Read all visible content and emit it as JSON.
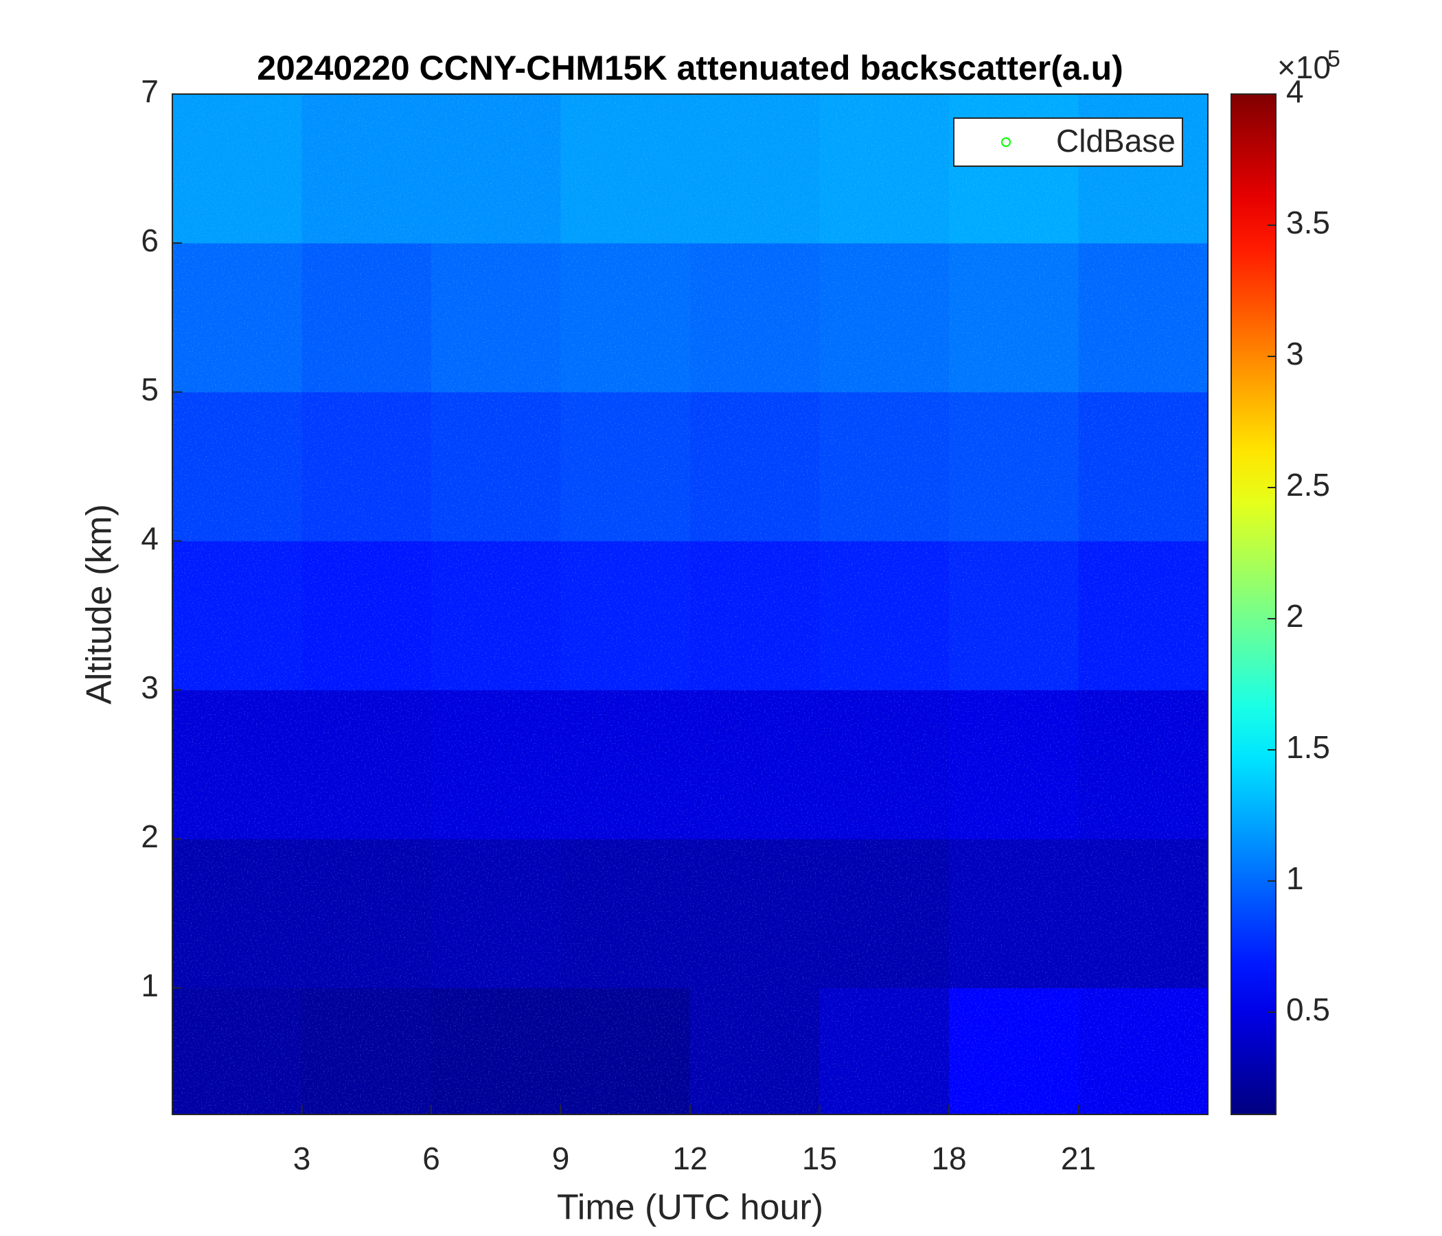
{
  "chart_data": {
    "type": "heatmap",
    "title": "20240220 CCNY-CHM15K attenuated backscatter(a.u)",
    "xlabel": "Time (UTC hour)",
    "ylabel": "Altitude (km)",
    "xlim": [
      0,
      24
    ],
    "xticks": [
      3,
      6,
      9,
      12,
      15,
      18,
      21
    ],
    "ylim": [
      0.15,
      7
    ],
    "yticks": [
      1,
      2,
      3,
      4,
      5,
      6,
      7
    ],
    "x_edges": [
      0,
      3,
      6,
      9,
      12,
      15,
      18,
      21,
      24
    ],
    "y_edges": [
      0.15,
      1,
      2,
      3,
      4,
      5,
      6,
      7
    ],
    "values": [
      [
        0.25,
        0.22,
        0.2,
        0.2,
        0.3,
        0.4,
        0.6,
        0.55
      ],
      [
        0.3,
        0.3,
        0.32,
        0.3,
        0.3,
        0.3,
        0.35,
        0.35
      ],
      [
        0.45,
        0.45,
        0.47,
        0.47,
        0.47,
        0.47,
        0.5,
        0.47
      ],
      [
        0.7,
        0.68,
        0.7,
        0.72,
        0.7,
        0.72,
        0.75,
        0.7
      ],
      [
        0.85,
        0.82,
        0.85,
        0.88,
        0.85,
        0.88,
        0.9,
        0.85
      ],
      [
        1.0,
        0.95,
        1.0,
        1.02,
        1.0,
        1.02,
        1.05,
        1.0
      ],
      [
        1.2,
        1.15,
        1.15,
        1.2,
        1.2,
        1.22,
        1.25,
        1.2
      ]
    ],
    "colormap": "jet",
    "clim": [
      0.11,
      4
    ],
    "cticks": [
      0.5,
      1,
      1.5,
      2,
      2.5,
      3,
      3.5,
      4
    ],
    "colorbar_multiplier": "×10",
    "colorbar_exponent": "5",
    "legend_position": "upper right",
    "series": [
      {
        "name": "CldBase",
        "color": "#00ff00",
        "marker": "o",
        "values": []
      }
    ]
  }
}
